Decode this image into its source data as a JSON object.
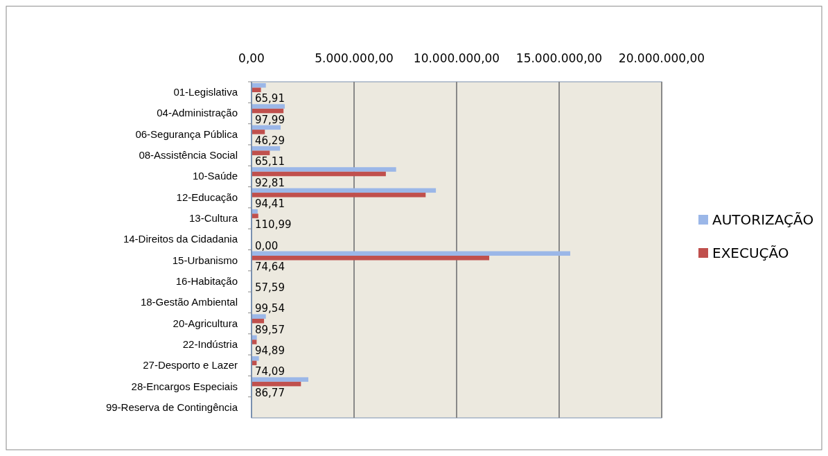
{
  "chart_data": {
    "type": "bar",
    "orientation": "horizontal",
    "categories": [
      "01-Legislativa",
      "04-Administração",
      "06-Segurança Pública",
      "08-Assistência Social",
      "10-Saúde",
      "12-Educação",
      "13-Cultura",
      "14-Direitos da Cidadania",
      "15-Urbanismo",
      "16-Habitação",
      "18-Gestão Ambiental",
      "20-Agricultura",
      "22-Indústria",
      "27-Desporto e Lazer",
      "28-Encargos Especiais",
      "99-Reserva de Contingência"
    ],
    "series": [
      {
        "name": "AUTORIZAÇÃO",
        "color": "#9bb7e8",
        "values": [
          700000,
          1620000,
          1420000,
          1390000,
          7050000,
          8990000,
          300000,
          0,
          15540000,
          30000,
          20000,
          700000,
          260000,
          360000,
          2770000,
          20000
        ]
      },
      {
        "name": "EXECUÇÃO",
        "color": "#c0504d",
        "values": [
          460000,
          1560000,
          650000,
          890000,
          6550000,
          8490000,
          330000,
          0,
          11590000,
          20000,
          20000,
          610000,
          250000,
          250000,
          2410000,
          0
        ]
      }
    ],
    "annotations": [
      "65,91",
      "97,99",
      "46,29",
      "65,11",
      "92,81",
      "94,41",
      "110,99",
      "0,00",
      "74,64",
      "57,59",
      "99,54",
      "89,57",
      "94,89",
      "74,09",
      "86,77"
    ],
    "xlim": [
      0,
      20000000
    ],
    "xticks": [
      {
        "value": 0,
        "label": "0,00"
      },
      {
        "value": 5000000,
        "label": "5.000.000,00"
      },
      {
        "value": 10000000,
        "label": "10.000.000,00"
      },
      {
        "value": 15000000,
        "label": "15.000.000,00"
      },
      {
        "value": 20000000,
        "label": "20.000.000,00"
      }
    ],
    "grid": "x",
    "legend": "right"
  }
}
